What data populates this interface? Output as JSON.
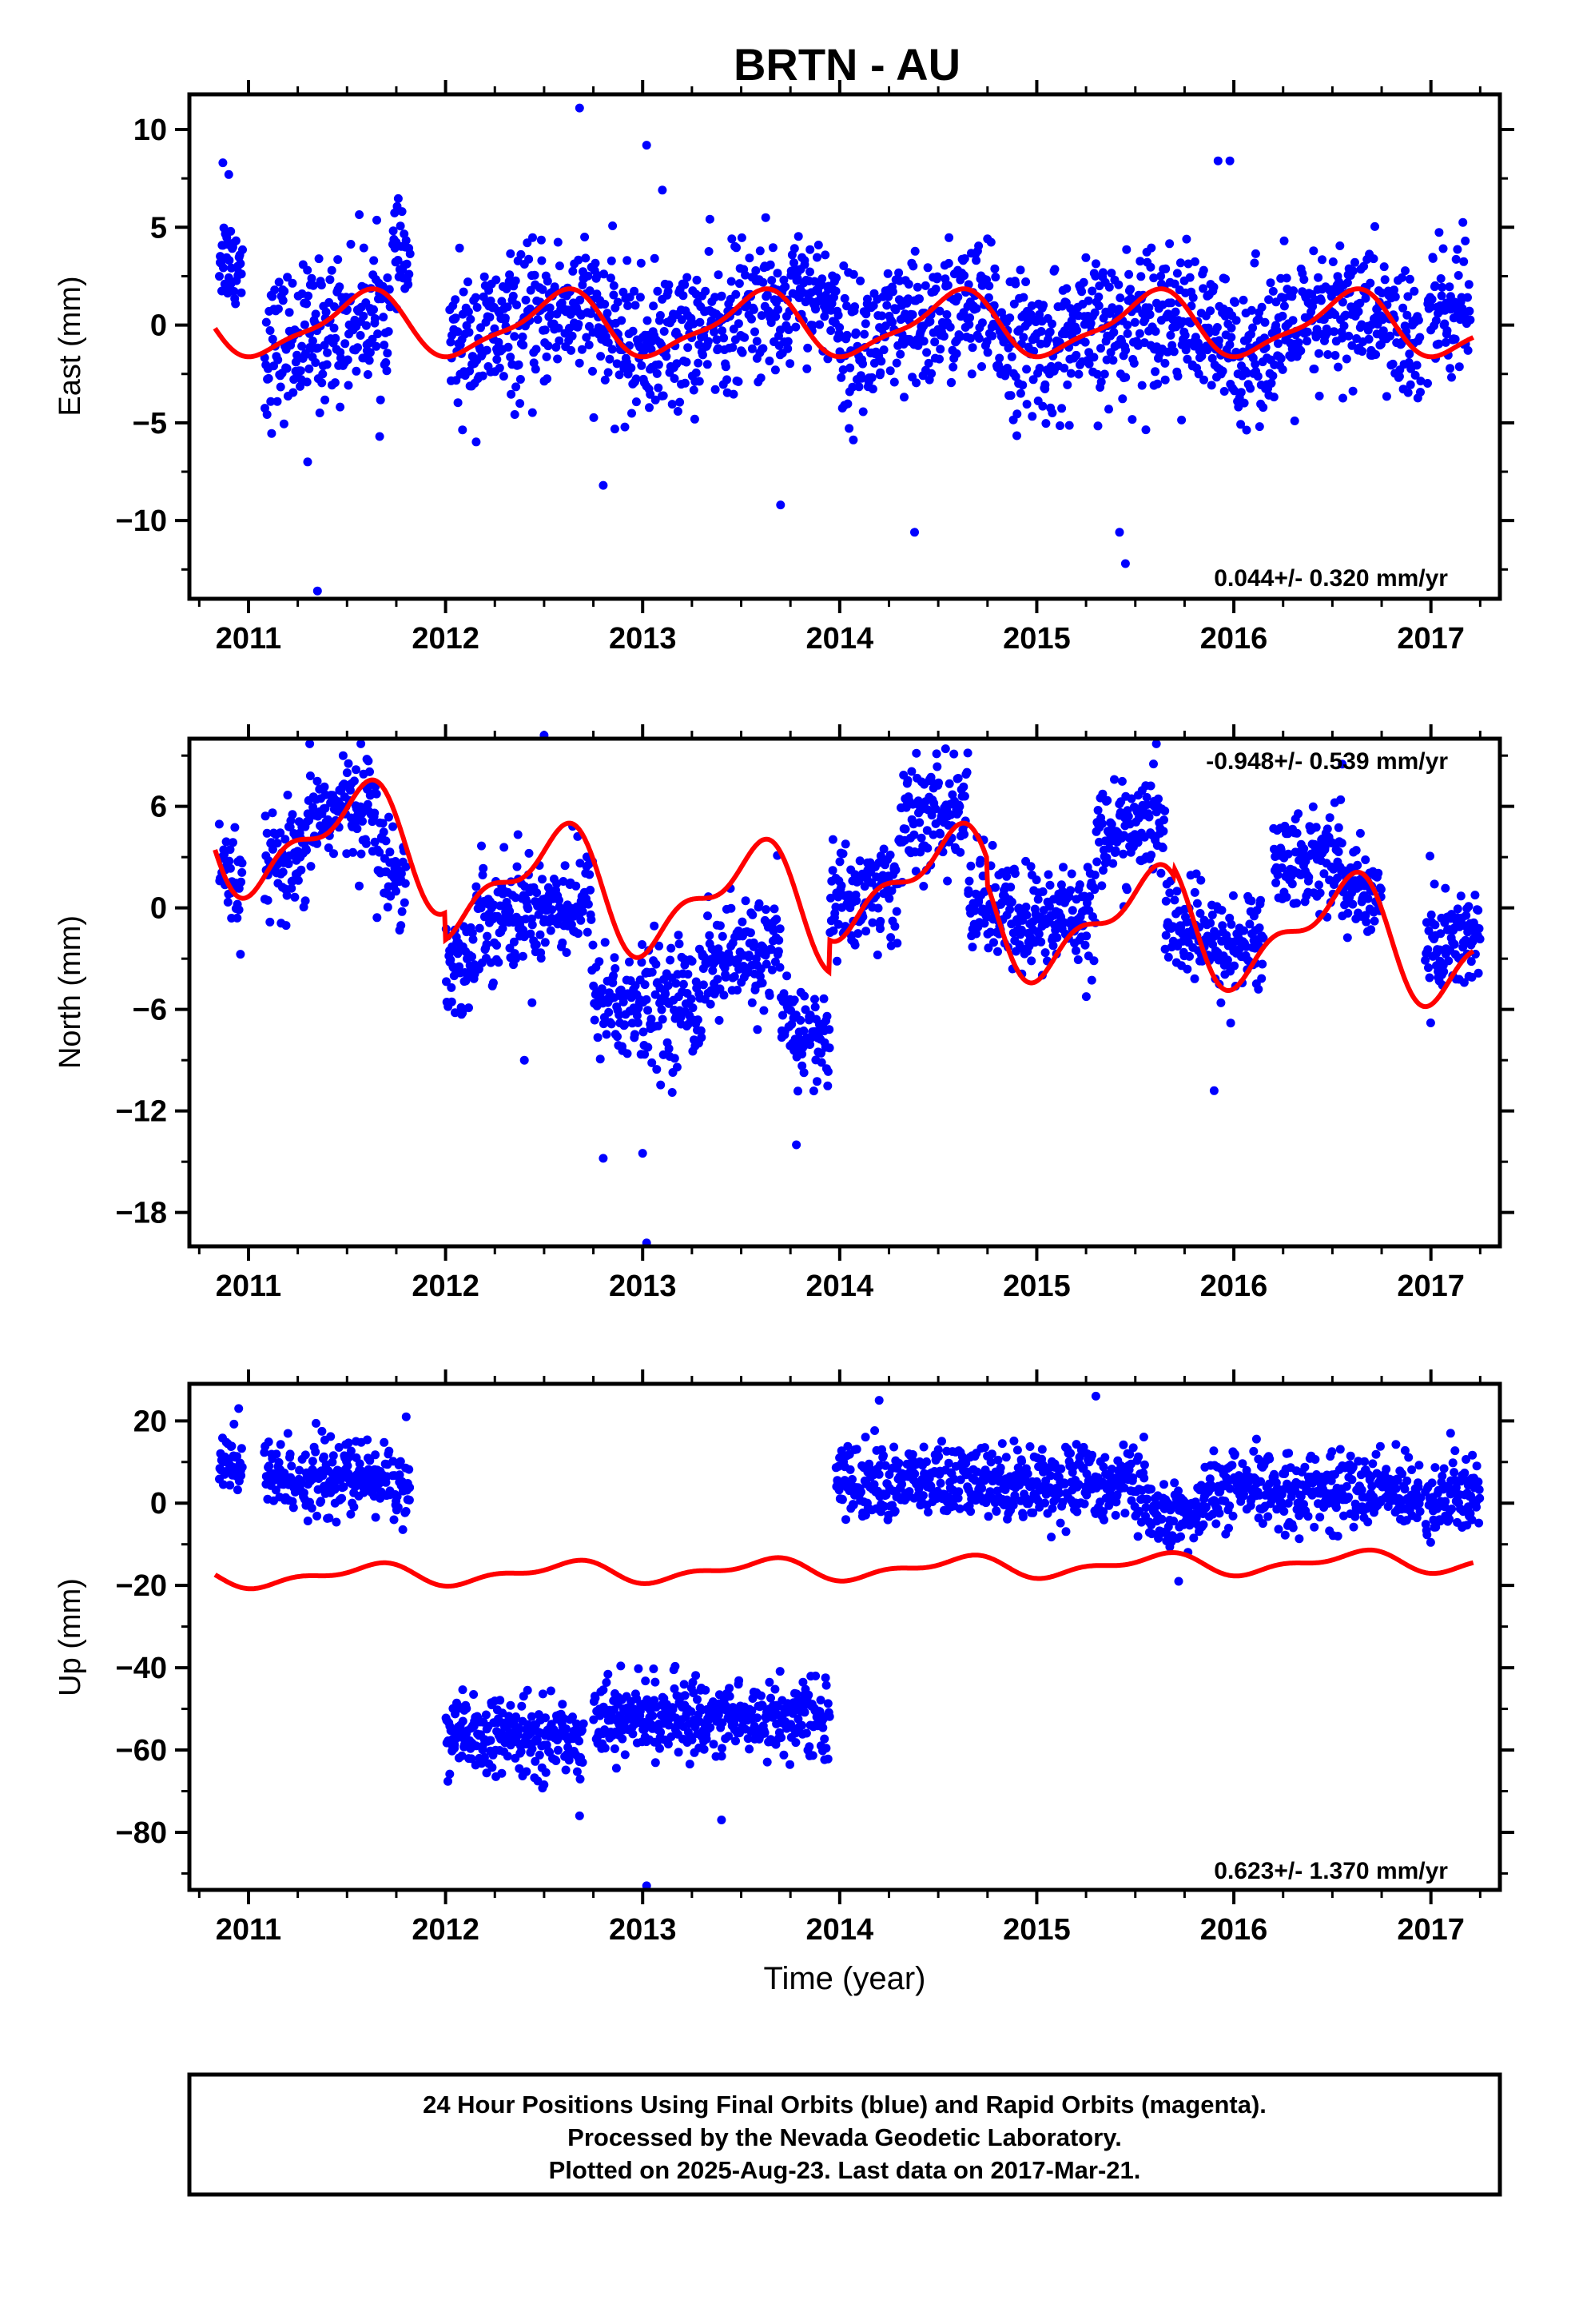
{
  "chart_data": [
    {
      "type": "scatter",
      "title": "BRTN - AU",
      "xlabel": "",
      "ylabel": "East (mm)",
      "xlim": [
        2010.7,
        2017.35
      ],
      "ylim": [
        -14,
        11.8
      ],
      "xticks": [
        "2011",
        "2012",
        "2013",
        "2014",
        "2015",
        "2016",
        "2017"
      ],
      "yticks": [
        "10",
        "5",
        "0",
        "−5",
        "−10"
      ],
      "ytick_values": [
        10,
        5,
        0,
        -5,
        -10
      ],
      "rate_label": "0.044+/- 0.320 mm/yr",
      "rate_position": "bottom-right",
      "grid": false,
      "series": [
        {
          "color": "#0000ff",
          "marker": "dot",
          "segments": [
            {
              "x0": 2010.85,
              "x1": 2010.97,
              "c": 4.0,
              "s": 1.3
            },
            {
              "x0": 2011.08,
              "x1": 2011.72,
              "c": -0.5,
              "s": 2.0
            },
            {
              "x0": 2011.73,
              "x1": 2011.82,
              "c": 3.0,
              "s": 1.2
            },
            {
              "x0": 2012.02,
              "x1": 2013.75,
              "c": -0.2,
              "s": 2.0
            },
            {
              "x0": 2013.75,
              "x1": 2014.0,
              "c": 2.0,
              "s": 1.6
            },
            {
              "x0": 2014.0,
              "x1": 2016.95,
              "c": -0.3,
              "s": 2.0
            },
            {
              "x0": 2016.98,
              "x1": 2017.2,
              "c": 1.5,
              "s": 2.2
            }
          ],
          "outliers": [
            [
              2011.35,
              -13.6
            ],
            [
              2012.68,
              11.1
            ],
            [
              2013.02,
              9.2
            ],
            [
              2013.1,
              6.9
            ],
            [
              2015.42,
              -10.6
            ],
            [
              2015.45,
              -12.2
            ],
            [
              2015.92,
              8.4
            ],
            [
              2015.98,
              8.4
            ],
            [
              2014.38,
              -10.6
            ],
            [
              2010.87,
              8.3
            ],
            [
              2010.9,
              7.7
            ],
            [
              2013.7,
              -9.2
            ],
            [
              2012.8,
              -8.2
            ],
            [
              2011.3,
              -7.0
            ]
          ]
        },
        {
          "color": "#ff0000",
          "type": "line",
          "offset": 0.0,
          "a1": 1.55,
          "p1": 0.33,
          "a2": 0.45,
          "p2": 0.05,
          "trend": 0.0
        }
      ]
    },
    {
      "type": "scatter",
      "title": "",
      "xlabel": "",
      "ylabel": "North (mm)",
      "xlim": [
        2010.7,
        2017.35
      ],
      "ylim": [
        -20,
        10
      ],
      "xticks": [
        "2011",
        "2012",
        "2013",
        "2014",
        "2015",
        "2016",
        "2017"
      ],
      "yticks": [
        "6",
        "0",
        "−6",
        "−12",
        "−18"
      ],
      "ytick_values": [
        6,
        0,
        -6,
        -12,
        -18
      ],
      "rate_label": "-0.948+/- 0.539 mm/yr",
      "rate_position": "top-right",
      "grid": false,
      "series": [
        {
          "color": "#0000ff",
          "marker": "dot",
          "segments": [
            {
              "x0": 2010.85,
              "x1": 2010.97,
              "c": 2.0,
              "s": 1.5
            },
            {
              "x0": 2011.08,
              "x1": 2011.3,
              "c": 2.5,
              "s": 1.8
            },
            {
              "x0": 2011.3,
              "x1": 2011.65,
              "c": 5.5,
              "s": 1.6
            },
            {
              "x0": 2011.65,
              "x1": 2011.8,
              "c": 2.0,
              "s": 1.5
            },
            {
              "x0": 2012.0,
              "x1": 2012.15,
              "c": -2.5,
              "s": 1.8
            },
            {
              "x0": 2012.15,
              "x1": 2012.75,
              "c": 0.0,
              "s": 1.8
            },
            {
              "x0": 2012.75,
              "x1": 2013.3,
              "c": -5.0,
              "s": 2.0
            },
            {
              "x0": 2013.3,
              "x1": 2013.7,
              "c": -3.0,
              "s": 1.8
            },
            {
              "x0": 2013.7,
              "x1": 2013.95,
              "c": -7.0,
              "s": 1.6
            },
            {
              "x0": 2013.95,
              "x1": 2014.3,
              "c": 1.0,
              "s": 1.8
            },
            {
              "x0": 2014.3,
              "x1": 2014.65,
              "c": 5.0,
              "s": 1.8
            },
            {
              "x0": 2014.65,
              "x1": 2015.3,
              "c": 0.0,
              "s": 1.8
            },
            {
              "x0": 2015.3,
              "x1": 2015.65,
              "c": 4.5,
              "s": 1.6
            },
            {
              "x0": 2015.65,
              "x1": 2016.15,
              "c": -1.5,
              "s": 1.6
            },
            {
              "x0": 2016.2,
              "x1": 2016.55,
              "c": 3.0,
              "s": 1.6
            },
            {
              "x0": 2016.55,
              "x1": 2016.75,
              "c": 0.5,
              "s": 1.5
            },
            {
              "x0": 2016.97,
              "x1": 2017.25,
              "c": -1.5,
              "s": 1.8
            }
          ],
          "outliers": [
            [
              2013.02,
              -19.8
            ],
            [
              2012.8,
              -14.8
            ],
            [
              2013.0,
              -14.5
            ],
            [
              2011.48,
              9.0
            ],
            [
              2012.5,
              10.2
            ],
            [
              2016.55,
              8.5
            ],
            [
              2013.78,
              -14.0
            ],
            [
              2015.9,
              -10.8
            ],
            [
              2012.4,
              -9.0
            ]
          ]
        },
        {
          "color": "#ff0000",
          "type": "line",
          "offset": 1.5,
          "a1": 3.0,
          "p1": 0.3,
          "a2": 1.4,
          "p2": 0.05,
          "trend": -0.95,
          "breaks": [
            [
              2012.0,
              -1.6
            ],
            [
              2013.95,
              1.9
            ],
            [
              2014.75,
              -1.5
            ],
            [
              2015.7,
              0.5
            ]
          ]
        }
      ]
    },
    {
      "type": "scatter",
      "title": "",
      "xlabel": "Time (year)",
      "ylabel": "Up (mm)",
      "xlim": [
        2010.7,
        2017.35
      ],
      "ylim": [
        -94,
        29
      ],
      "xticks": [
        "2011",
        "2012",
        "2013",
        "2014",
        "2015",
        "2016",
        "2017"
      ],
      "yticks": [
        "20",
        "0",
        "−20",
        "−40",
        "−60",
        "−80"
      ],
      "ytick_values": [
        20,
        0,
        -20,
        -40,
        -60,
        -80
      ],
      "rate_label": "0.623+/- 1.370 mm/yr",
      "rate_position": "bottom-right",
      "grid": false,
      "series": [
        {
          "color": "#0000ff",
          "marker": "dot",
          "segments": [
            {
              "x0": 2010.85,
              "x1": 2010.97,
              "c": 9.0,
              "s": 5.0
            },
            {
              "x0": 2011.08,
              "x1": 2011.72,
              "c": 6.0,
              "s": 5.0
            },
            {
              "x0": 2011.73,
              "x1": 2011.82,
              "c": 4.0,
              "s": 5.0
            },
            {
              "x0": 2012.0,
              "x1": 2012.7,
              "c": -57.0,
              "s": 5.0
            },
            {
              "x0": 2012.75,
              "x1": 2013.95,
              "c": -52.0,
              "s": 5.0
            },
            {
              "x0": 2013.98,
              "x1": 2015.55,
              "c": 5.0,
              "s": 5.0
            },
            {
              "x0": 2015.55,
              "x1": 2015.85,
              "c": -3.0,
              "s": 4.0
            },
            {
              "x0": 2015.85,
              "x1": 2016.95,
              "c": 3.0,
              "s": 5.0
            },
            {
              "x0": 2016.97,
              "x1": 2017.25,
              "c": 1.0,
              "s": 5.0
            }
          ],
          "outliers": [
            [
              2013.02,
              -93.0
            ],
            [
              2013.4,
              -77.0
            ],
            [
              2012.68,
              -76.0
            ],
            [
              2014.2,
              25.0
            ],
            [
              2015.3,
              26.0
            ],
            [
              2010.95,
              23.0
            ],
            [
              2011.8,
              21.0
            ],
            [
              2017.1,
              17.0
            ],
            [
              2015.72,
              -19.0
            ]
          ]
        },
        {
          "color": "#ff0000",
          "type": "line",
          "offset": -16.0,
          "a1": 2.2,
          "p1": 0.35,
          "a2": 1.2,
          "p2": 0.1,
          "trend": 0.62
        }
      ]
    }
  ],
  "footer": {
    "line1": "24 Hour Positions Using Final Orbits (blue) and Rapid Orbits (magenta).",
    "line2": "Processed by the Nevada Geodetic Laboratory.",
    "line3": "Plotted on 2025-Aug-23. Last data on 2017-Mar-21."
  }
}
